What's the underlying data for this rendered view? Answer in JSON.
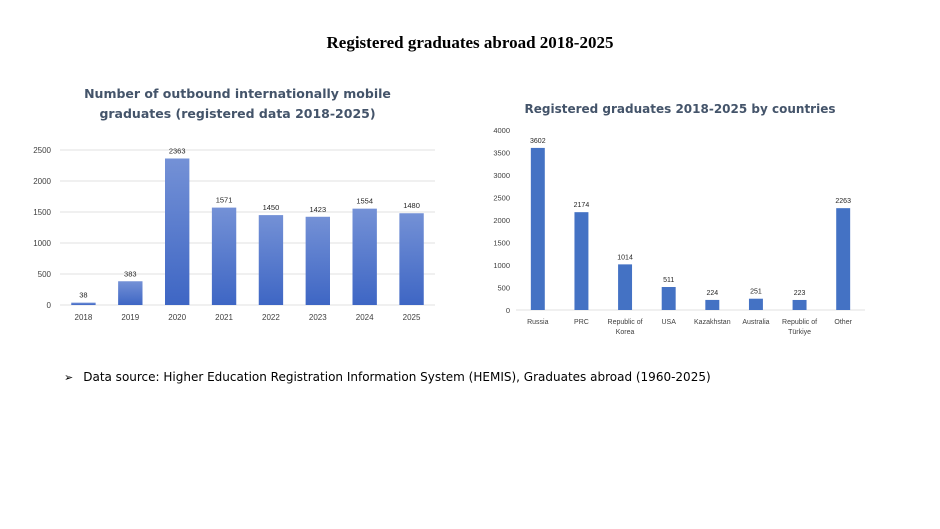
{
  "page": {
    "title": "Registered graduates abroad 2018-2025",
    "source_bullet": "➢",
    "source_text": "Data source: Higher Education Registration Information System (HEMIS), Graduates abroad (1960-2025)"
  },
  "colors": {
    "bar_top": "#7491d6",
    "bar_bottom": "#3e66c4",
    "bar_solid": "#4472c4",
    "title": "#44546a",
    "grid": "#d9d9d9",
    "axis_text": "#404040"
  },
  "chart_data": [
    {
      "type": "bar",
      "title": "Number of outbound internationally mobile graduates (registered data 2018-2025)",
      "title_lines": [
        "Number of outbound internationally mobile",
        "graduates (registered data 2018-2025)"
      ],
      "categories": [
        "2018",
        "2019",
        "2020",
        "2021",
        "2022",
        "2023",
        "2024",
        "2025"
      ],
      "values": [
        38,
        383,
        2363,
        1571,
        1450,
        1423,
        1554,
        1480
      ],
      "ylim": [
        0,
        2500
      ],
      "yticks": [
        0,
        500,
        1000,
        1500,
        2000,
        2500
      ],
      "grid": true,
      "data_labels": true
    },
    {
      "type": "bar",
      "title": "Registered graduates 2018-2025 by countries",
      "categories": [
        "Russia",
        "PRC",
        "Republic of Korea",
        "USA",
        "Kazakhstan",
        "Australia",
        "Republic of Türkiye",
        "Other"
      ],
      "category_lines": [
        [
          "Russia"
        ],
        [
          "PRC"
        ],
        [
          "Republic of",
          "Korea"
        ],
        [
          "USA"
        ],
        [
          "Kazakhstan"
        ],
        [
          "Australia"
        ],
        [
          "Republic of",
          "Türkiye"
        ],
        [
          "Other"
        ]
      ],
      "values": [
        3602,
        2174,
        1014,
        511,
        224,
        251,
        223,
        2263
      ],
      "ylim": [
        0,
        4000
      ],
      "yticks": [
        0,
        500,
        1000,
        1500,
        2000,
        2500,
        3000,
        3500,
        4000
      ],
      "grid": false,
      "data_labels": true
    }
  ]
}
